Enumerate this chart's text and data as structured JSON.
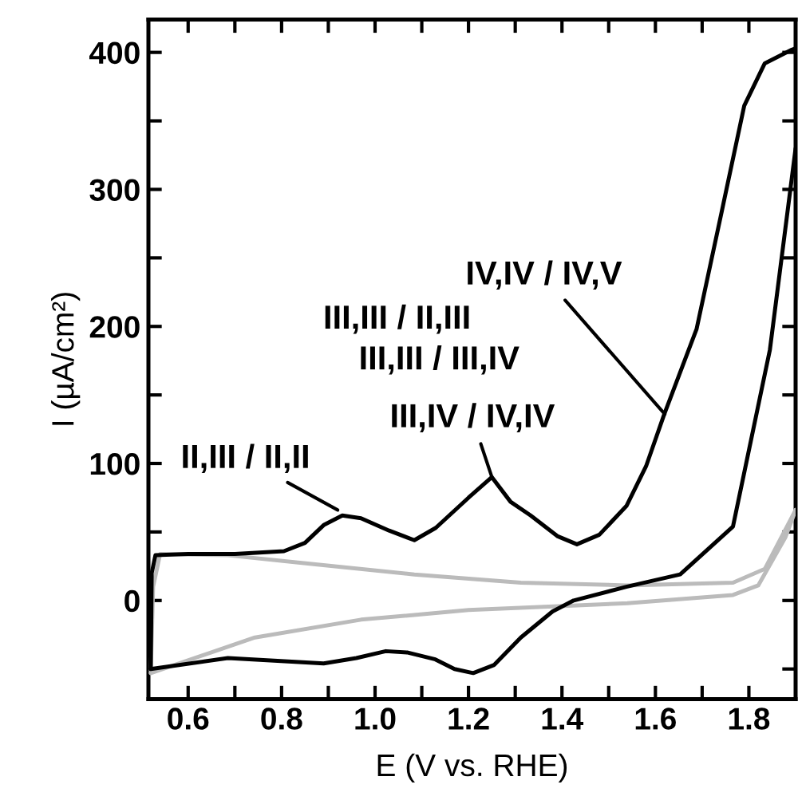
{
  "chart_data": {
    "type": "line",
    "xlabel": "E (V vs. RHE)",
    "ylabel": "I (µA/cm²)",
    "series": [
      {
        "color": "#000000",
        "x": [
          0.52,
          0.522,
          0.53,
          0.6,
          0.7,
          0.805,
          0.85,
          0.89,
          0.93,
          0.97,
          1.03,
          1.084,
          1.13,
          1.2,
          1.25,
          1.29,
          1.333,
          1.39,
          1.432,
          1.48,
          1.538,
          1.58,
          1.619,
          1.688,
          1.742,
          1.79,
          1.834,
          1.892,
          1.9
        ],
        "values": [
          -50,
          20,
          33,
          34,
          34,
          36,
          42,
          55,
          62,
          60,
          51,
          44,
          53,
          75,
          90,
          72,
          62,
          47,
          41,
          48,
          69,
          98,
          136,
          198,
          284,
          361,
          392,
          402,
          403
        ]
      },
      {
        "color": "#000000",
        "x": [
          1.9,
          1.845,
          1.766,
          1.653,
          1.538,
          1.425,
          1.38,
          1.312,
          1.255,
          1.21,
          1.17,
          1.129,
          1.07,
          1.023,
          0.96,
          0.89,
          0.685,
          0.52
        ],
        "values": [
          330,
          183,
          54,
          19,
          10,
          0,
          -8,
          -27,
          -47,
          -53,
          -50,
          -43,
          -38,
          -37,
          -42,
          -46,
          -42,
          -50
        ]
      },
      {
        "color": "#bbbbbb",
        "x": [
          0.52,
          0.743,
          0.97,
          1.2,
          1.54,
          1.766,
          1.82,
          1.878,
          1.9
        ],
        "values": [
          -53,
          -27,
          -14,
          -7,
          -2,
          4,
          11,
          46,
          66
        ]
      },
      {
        "color": "#bbbbbb",
        "x": [
          1.9,
          1.834,
          1.766,
          1.538,
          1.312,
          1.084,
          0.856,
          0.685,
          0.54,
          0.525,
          0.52
        ],
        "values": [
          66,
          23,
          13,
          11,
          13,
          19,
          27,
          33,
          34,
          10,
          -53
        ]
      }
    ],
    "xlim": [
      0.515,
      1.9
    ],
    "ylim": [
      -72,
      424
    ],
    "xticks": [
      {
        "value": 0.6,
        "label": "0.6"
      },
      {
        "value": 0.7,
        "label": null
      },
      {
        "value": 0.8,
        "label": "0.8"
      },
      {
        "value": 0.9,
        "label": null
      },
      {
        "value": 1.0,
        "label": "1.0"
      },
      {
        "value": 1.1,
        "label": null
      },
      {
        "value": 1.2,
        "label": "1.2"
      },
      {
        "value": 1.3,
        "label": null
      },
      {
        "value": 1.4,
        "label": "1.4"
      },
      {
        "value": 1.5,
        "label": null
      },
      {
        "value": 1.6,
        "label": "1.6"
      },
      {
        "value": 1.7,
        "label": null
      },
      {
        "value": 1.8,
        "label": "1.8"
      }
    ],
    "yticks": [
      {
        "value": -50,
        "label": null
      },
      0,
      {
        "value": 50,
        "label": null
      },
      100,
      {
        "value": 150,
        "label": null
      },
      200,
      {
        "value": 250,
        "label": null
      },
      300,
      {
        "value": 350,
        "label": null
      },
      400
    ],
    "annotations": [
      {
        "text": "II,III / II,II",
        "x": 0.92,
        "y": 66
      },
      "III,III / II,III",
      "III,III / III,IV",
      {
        "text": "III,IV / IV,IV",
        "x": 1.25,
        "y": 90
      },
      {
        "text": "IV,IV / IV,V",
        "x": 1.62,
        "y": 136
      }
    ],
    "grid": false,
    "legend": false,
    "line_style": "solid"
  }
}
